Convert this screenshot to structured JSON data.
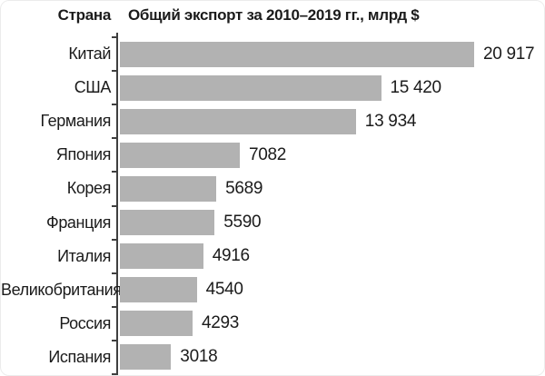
{
  "header": {
    "column_label": "Страна",
    "title": "Общий экспорт за 2010–2019 гг., млрд $"
  },
  "chart_data": {
    "type": "bar",
    "orientation": "horizontal",
    "title": "Общий экспорт за 2010–2019 гг., млрд $",
    "xlabel": "",
    "ylabel": "Страна",
    "categories": [
      "Китай",
      "США",
      "Германия",
      "Япония",
      "Корея",
      "Франция",
      "Италия",
      "Великобритания",
      "Россия",
      "Испания"
    ],
    "values": [
      20917,
      15420,
      13934,
      7082,
      5689,
      5590,
      4916,
      4540,
      4293,
      3018
    ],
    "value_labels": [
      "20 917",
      "15 420",
      "13 934",
      "7082",
      "5689",
      "5590",
      "4916",
      "4540",
      "4293",
      "3018"
    ],
    "xlim": [
      0,
      22500
    ],
    "grid": false,
    "legend": false,
    "bar_color": "#b2b2b2",
    "axis_color": "#3f3f3f",
    "text_color": "#1b1b1b"
  }
}
